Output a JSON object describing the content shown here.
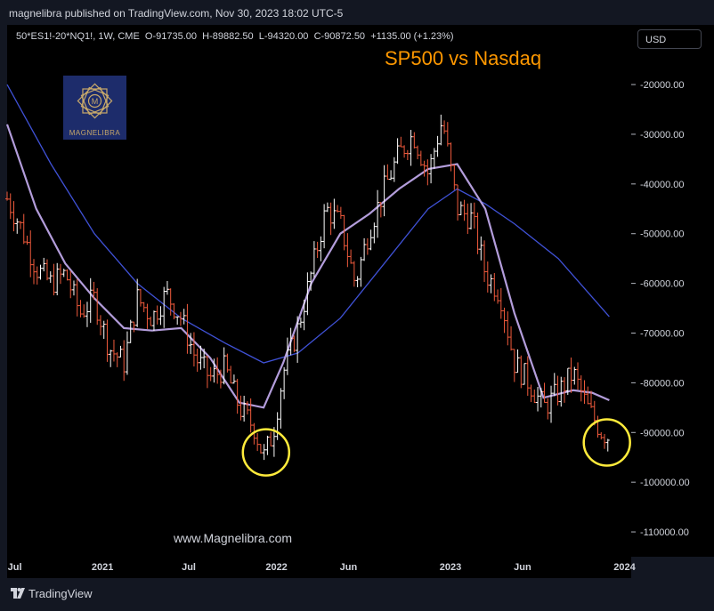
{
  "header": {
    "published_text": "magnelibra published on TradingView.com, Nov 30, 2023 18:02 UTC-5"
  },
  "legend": {
    "symbol": "50*ES1!-20*NQ1!, 1W, CME",
    "open": "O-91735.00",
    "high": "H-89882.50",
    "low": "L-94320.00",
    "close": "C-90872.50",
    "change": "+1135.00 (+1.23%)"
  },
  "currency_button": "USD",
  "watermark": {
    "logo_text": "MAGNELIBRA",
    "url": "www.Magnelibra.com"
  },
  "footer": {
    "brand": "TradingView"
  },
  "colors": {
    "background": "#000000",
    "frame": "#131722",
    "bar": "#ffffff",
    "bar_down": "#f05a3c",
    "ma_fast": "#b39ddb",
    "ma_slow": "#3f51d5",
    "highlight": "#ffeb3b",
    "title": "#ff9800"
  },
  "chart_data": {
    "type": "line",
    "title": "SP500 vs Nasdaq",
    "y_axis": {
      "ticks": [
        -20000,
        -30000,
        -40000,
        -50000,
        -60000,
        -70000,
        -80000,
        -90000,
        -100000,
        -110000
      ],
      "tick_labels": [
        "-20000.00",
        "-30000.00",
        "-40000.00",
        "-50000.00",
        "-60000.00",
        "-70000.00",
        "-80000.00",
        "-90000.00",
        "-100000.00",
        "-110000.00"
      ],
      "ylim": [
        -115000,
        -8000
      ]
    },
    "x_axis": {
      "tick_labels": [
        "Jul",
        "2021",
        "Jul",
        "2022",
        "Jun",
        "2023",
        "Jun",
        "2024"
      ],
      "tick_dates": [
        "2020-07-01",
        "2021-01-01",
        "2021-07-01",
        "2022-01-01",
        "2022-06-01",
        "2023-01-01",
        "2023-06-01",
        "2024-01-01"
      ],
      "xlim": [
        "2020-06-15",
        "2024-01-15"
      ]
    },
    "series": [
      {
        "name": "",
        "kind": "price",
        "x": [
          "2020-06-15",
          "2020-07-15",
          "2020-08-15",
          "2020-09-15",
          "2020-10-15",
          "2020-11-15",
          "2020-12-15",
          "2021-01-15",
          "2021-02-15",
          "2021-03-15",
          "2021-04-15",
          "2021-05-15",
          "2021-06-15",
          "2021-07-15",
          "2021-08-15",
          "2021-09-15",
          "2021-10-15",
          "2021-11-15",
          "2021-12-05",
          "2021-12-25",
          "2022-01-15",
          "2022-02-15",
          "2022-03-15",
          "2022-04-15",
          "2022-05-15",
          "2022-06-15",
          "2022-07-15",
          "2022-08-15",
          "2022-09-15",
          "2022-10-15",
          "2022-11-15",
          "2022-12-15",
          "2023-01-15",
          "2023-02-15",
          "2023-03-15",
          "2023-04-15",
          "2023-05-15",
          "2023-06-15",
          "2023-07-15",
          "2023-08-15",
          "2023-09-15",
          "2023-10-15",
          "2023-11-15",
          "2023-11-30"
        ],
        "values": [
          -43000,
          -49000,
          -57000,
          -60000,
          -58000,
          -66000,
          -63000,
          -73000,
          -76000,
          -63000,
          -67000,
          -62000,
          -67000,
          -75000,
          -79000,
          -77000,
          -85000,
          -89000,
          -95000,
          -90000,
          -78000,
          -69000,
          -58000,
          -45000,
          -48000,
          -60000,
          -49000,
          -41000,
          -34000,
          -30000,
          -38000,
          -27000,
          -45000,
          -47000,
          -58000,
          -62000,
          -76000,
          -80000,
          -85000,
          -82000,
          -78000,
          -85000,
          -90000,
          -90900
        ]
      },
      {
        "name": "",
        "kind": "ma_fast",
        "x": [
          "2020-06-15",
          "2020-08-15",
          "2020-10-15",
          "2020-12-15",
          "2021-02-15",
          "2021-04-15",
          "2021-06-15",
          "2021-08-15",
          "2021-10-15",
          "2021-12-05",
          "2022-01-15",
          "2022-03-15",
          "2022-05-15",
          "2022-07-15",
          "2022-09-15",
          "2022-11-15",
          "2023-01-15",
          "2023-03-15",
          "2023-05-15",
          "2023-07-15",
          "2023-09-15",
          "2023-10-25",
          "2023-11-30"
        ],
        "values": [
          -28000,
          -45000,
          -56000,
          -63000,
          -69000,
          -69500,
          -69000,
          -75000,
          -84000,
          -85000,
          -76000,
          -60000,
          -50000,
          -46000,
          -41000,
          -37000,
          -36000,
          -45000,
          -66000,
          -83000,
          -81500,
          -82000,
          -83500
        ]
      },
      {
        "name": "",
        "kind": "ma_slow",
        "x": [
          "2020-06-15",
          "2020-09-15",
          "2020-12-15",
          "2021-03-15",
          "2021-06-15",
          "2021-09-15",
          "2021-12-05",
          "2022-02-15",
          "2022-05-15",
          "2022-08-15",
          "2022-11-15",
          "2023-01-15",
          "2023-03-15",
          "2023-05-15",
          "2023-08-15",
          "2023-11-30"
        ],
        "values": [
          -20000,
          -36000,
          -50000,
          -60000,
          -67000,
          -72000,
          -76000,
          -74000,
          -67000,
          -56000,
          -45000,
          -41000,
          -44000,
          -48000,
          -55000,
          -66700
        ]
      }
    ],
    "annotations": [
      {
        "type": "circle",
        "x": "2021-12-10",
        "y": -94000
      },
      {
        "type": "circle",
        "x": "2023-11-25",
        "y": -92000
      }
    ],
    "grid": false,
    "legend_position": "top-left"
  }
}
